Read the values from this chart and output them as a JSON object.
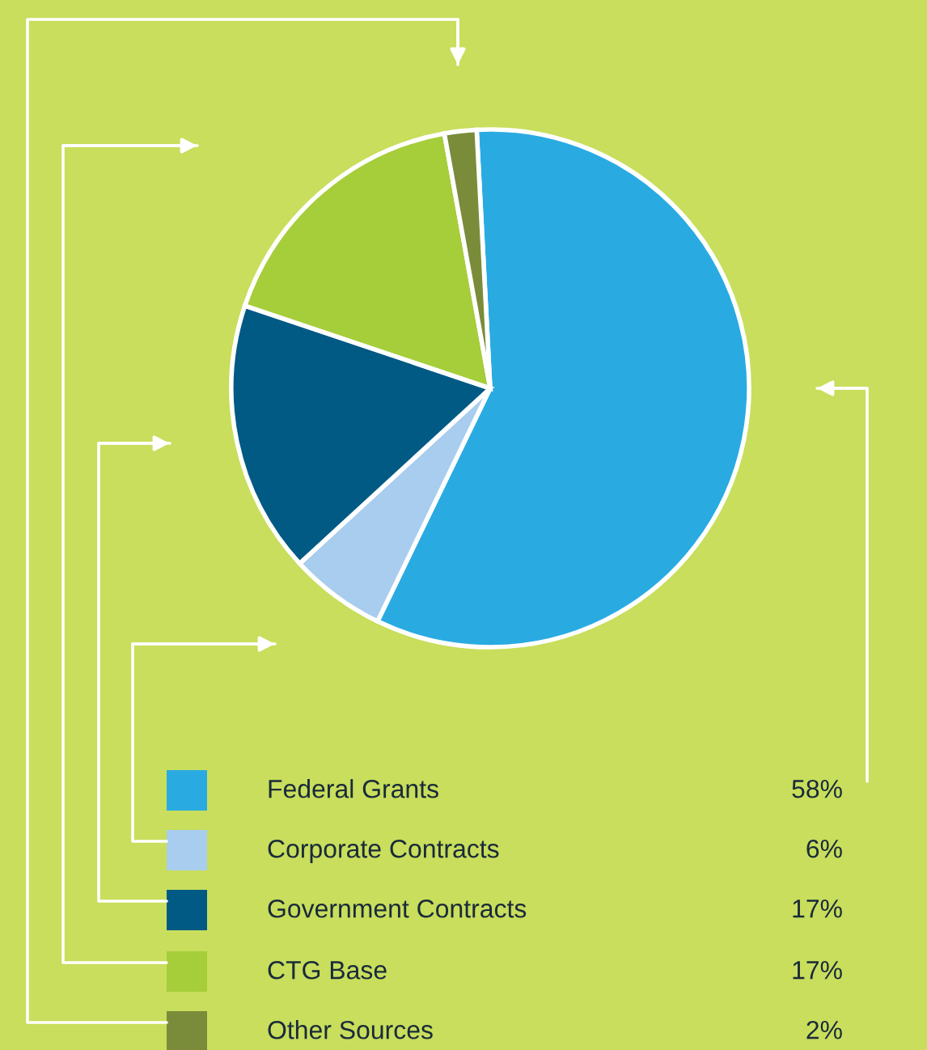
{
  "chart_data": {
    "type": "pie",
    "categories": [
      "Federal Grants",
      "Corporate Contracts",
      "Government Contracts",
      "CTG Base",
      "Other Sources"
    ],
    "values": [
      58,
      6,
      17,
      17,
      2
    ],
    "colors": [
      "#29abe2",
      "#a8cdee",
      "#005a84",
      "#a6cd3a",
      "#7a8c3a"
    ],
    "value_labels": [
      "58%",
      "6%",
      "17%",
      "17%",
      "2%"
    ],
    "legend": "bottom"
  }
}
